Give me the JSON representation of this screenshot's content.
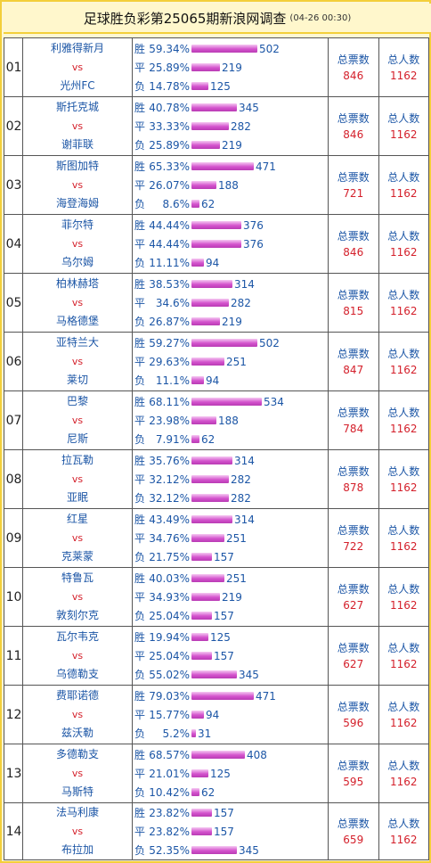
{
  "header": {
    "title": "足球胜负彩第25065期新浪网调查",
    "timestamp": "(04-26 00:30)"
  },
  "labels": {
    "win": "胜",
    "draw": "平",
    "loss": "负",
    "vs": "vs",
    "votes": "总票数",
    "people": "总人数"
  },
  "colors": {
    "frame": "#f3cf3a",
    "team": "#1c56a6",
    "highlight": "#d4202b",
    "bar": "#d453cd"
  },
  "matches": [
    {
      "idx": "01",
      "home": "利雅得新月",
      "away": "光州FC",
      "win_pct": "59.34%",
      "win_cnt": "502",
      "draw_pct": "25.89%",
      "draw_cnt": "219",
      "loss_pct": "14.78%",
      "loss_cnt": "125",
      "votes": "846",
      "people": "1162"
    },
    {
      "idx": "02",
      "home": "斯托克城",
      "away": "谢菲联",
      "win_pct": "40.78%",
      "win_cnt": "345",
      "draw_pct": "33.33%",
      "draw_cnt": "282",
      "loss_pct": "25.89%",
      "loss_cnt": "219",
      "votes": "846",
      "people": "1162"
    },
    {
      "idx": "03",
      "home": "斯图加特",
      "away": "海登海姆",
      "win_pct": "65.33%",
      "win_cnt": "471",
      "draw_pct": "26.07%",
      "draw_cnt": "188",
      "loss_pct": "8.6%",
      "loss_cnt": "62",
      "votes": "721",
      "people": "1162"
    },
    {
      "idx": "04",
      "home": "菲尔特",
      "away": "乌尔姆",
      "win_pct": "44.44%",
      "win_cnt": "376",
      "draw_pct": "44.44%",
      "draw_cnt": "376",
      "loss_pct": "11.11%",
      "loss_cnt": "94",
      "votes": "846",
      "people": "1162"
    },
    {
      "idx": "05",
      "home": "柏林赫塔",
      "away": "马格德堡",
      "win_pct": "38.53%",
      "win_cnt": "314",
      "draw_pct": "34.6%",
      "draw_cnt": "282",
      "loss_pct": "26.87%",
      "loss_cnt": "219",
      "votes": "815",
      "people": "1162"
    },
    {
      "idx": "06",
      "home": "亚特兰大",
      "away": "莱切",
      "win_pct": "59.27%",
      "win_cnt": "502",
      "draw_pct": "29.63%",
      "draw_cnt": "251",
      "loss_pct": "11.1%",
      "loss_cnt": "94",
      "votes": "847",
      "people": "1162"
    },
    {
      "idx": "07",
      "home": "巴黎",
      "away": "尼斯",
      "win_pct": "68.11%",
      "win_cnt": "534",
      "draw_pct": "23.98%",
      "draw_cnt": "188",
      "loss_pct": "7.91%",
      "loss_cnt": "62",
      "votes": "784",
      "people": "1162"
    },
    {
      "idx": "08",
      "home": "拉瓦勒",
      "away": "亚眠",
      "win_pct": "35.76%",
      "win_cnt": "314",
      "draw_pct": "32.12%",
      "draw_cnt": "282",
      "loss_pct": "32.12%",
      "loss_cnt": "282",
      "votes": "878",
      "people": "1162"
    },
    {
      "idx": "09",
      "home": "红星",
      "away": "克莱蒙",
      "win_pct": "43.49%",
      "win_cnt": "314",
      "draw_pct": "34.76%",
      "draw_cnt": "251",
      "loss_pct": "21.75%",
      "loss_cnt": "157",
      "votes": "722",
      "people": "1162"
    },
    {
      "idx": "10",
      "home": "特鲁瓦",
      "away": "敦刻尔克",
      "win_pct": "40.03%",
      "win_cnt": "251",
      "draw_pct": "34.93%",
      "draw_cnt": "219",
      "loss_pct": "25.04%",
      "loss_cnt": "157",
      "votes": "627",
      "people": "1162"
    },
    {
      "idx": "11",
      "home": "瓦尔韦克",
      "away": "乌德勒支",
      "win_pct": "19.94%",
      "win_cnt": "125",
      "draw_pct": "25.04%",
      "draw_cnt": "157",
      "loss_pct": "55.02%",
      "loss_cnt": "345",
      "votes": "627",
      "people": "1162"
    },
    {
      "idx": "12",
      "home": "费耶诺德",
      "away": "兹沃勒",
      "win_pct": "79.03%",
      "win_cnt": "471",
      "draw_pct": "15.77%",
      "draw_cnt": "94",
      "loss_pct": "5.2%",
      "loss_cnt": "31",
      "votes": "596",
      "people": "1162"
    },
    {
      "idx": "13",
      "home": "多德勒支",
      "away": "马斯特",
      "win_pct": "68.57%",
      "win_cnt": "408",
      "draw_pct": "21.01%",
      "draw_cnt": "125",
      "loss_pct": "10.42%",
      "loss_cnt": "62",
      "votes": "595",
      "people": "1162"
    },
    {
      "idx": "14",
      "home": "法马利康",
      "away": "布拉加",
      "win_pct": "23.82%",
      "win_cnt": "157",
      "draw_pct": "23.82%",
      "draw_cnt": "157",
      "loss_pct": "52.35%",
      "loss_cnt": "345",
      "votes": "659",
      "people": "1162"
    }
  ]
}
